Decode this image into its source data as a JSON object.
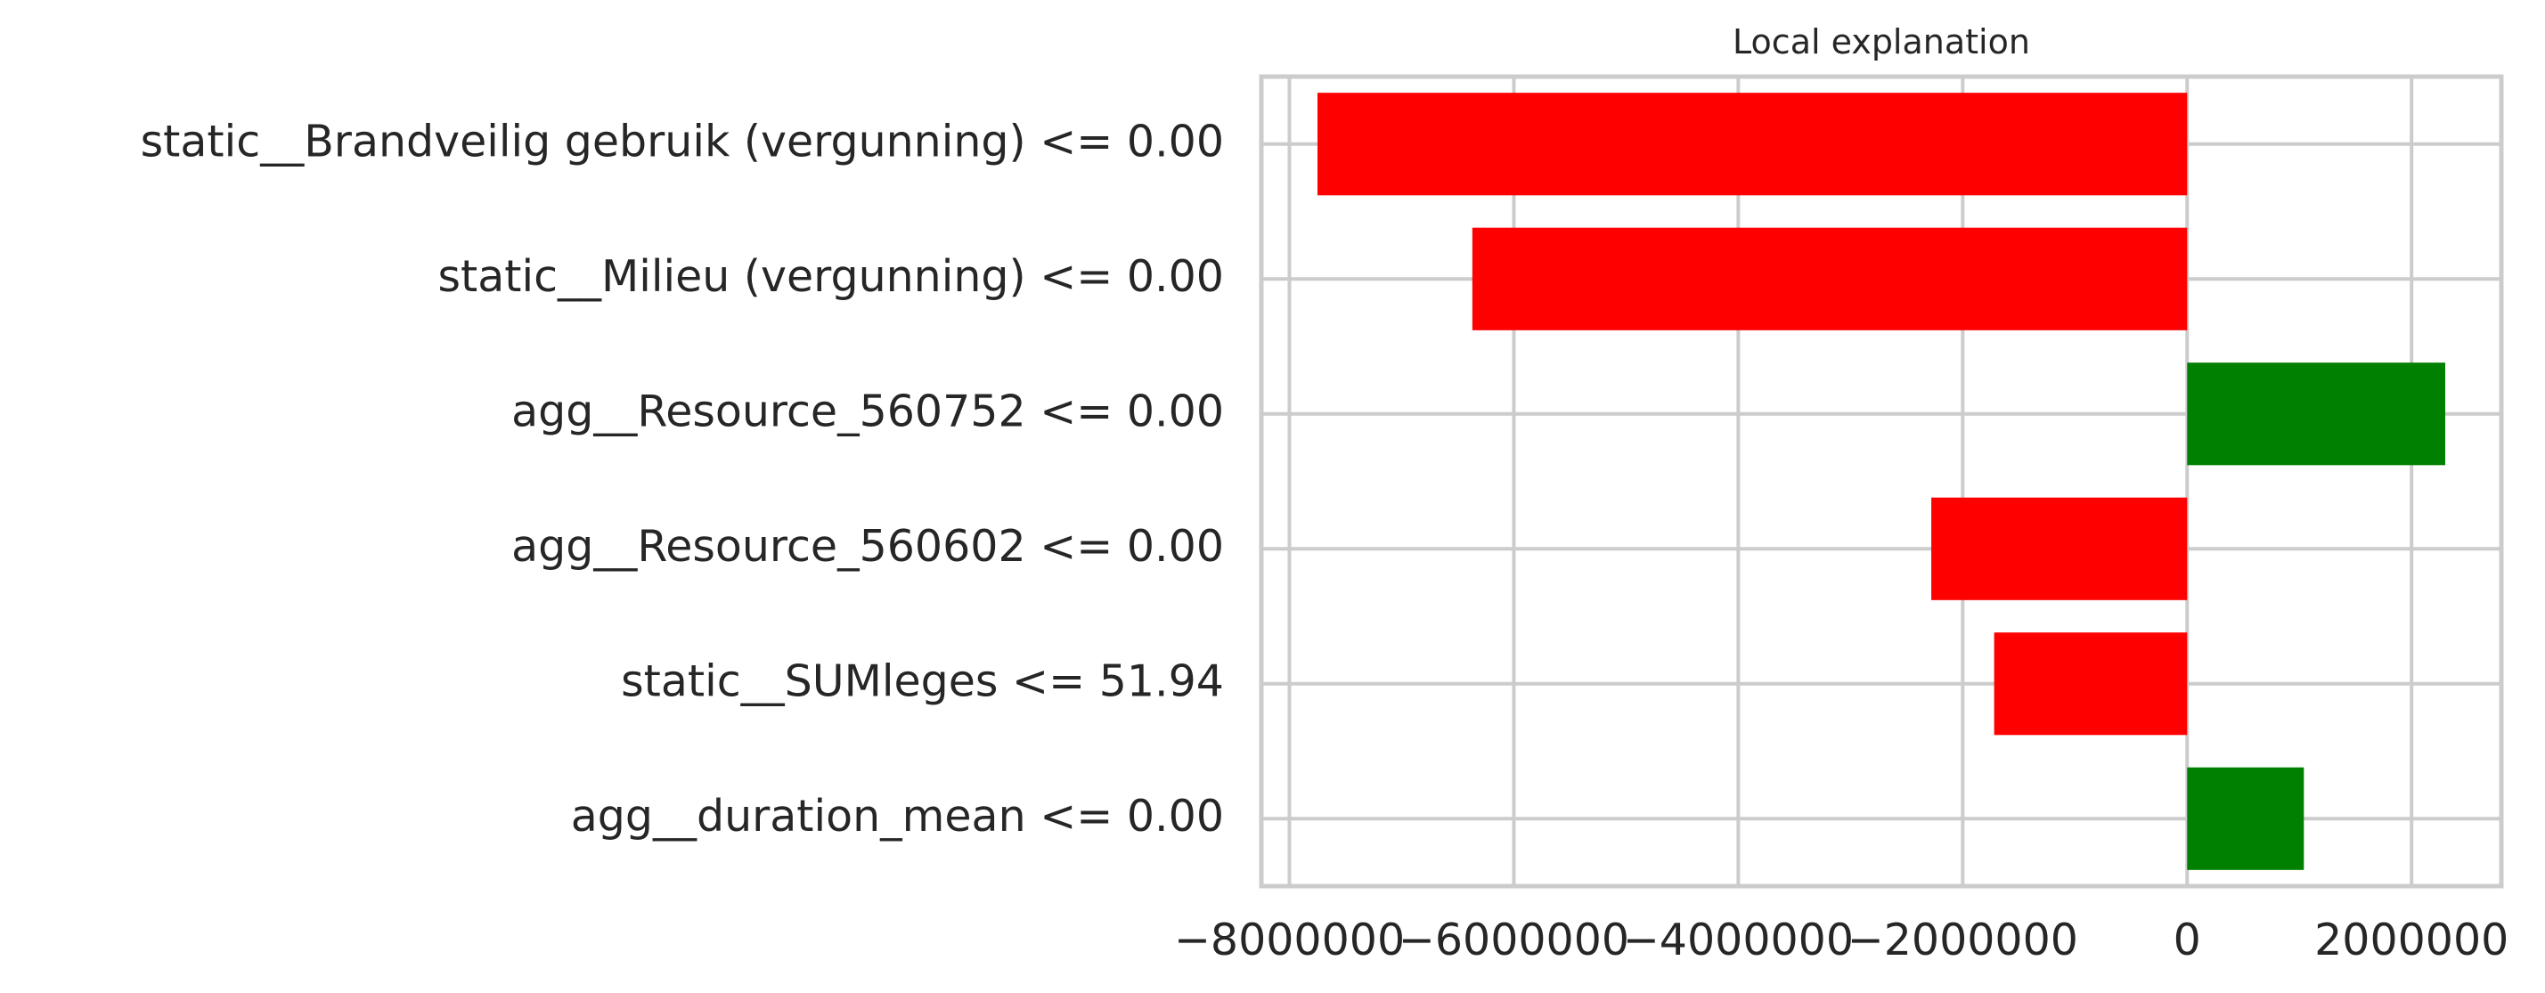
{
  "chart_data": {
    "type": "bar",
    "orientation": "horizontal",
    "title": "Local explanation",
    "categories": [
      "static__Brandveilig gebruik (vergunning) <= 0.00",
      "static__Milieu (vergunning) <= 0.00",
      "agg__Resource_560752 <= 0.00",
      "agg__Resource_560602 <= 0.00",
      "static__SUMleges <= 51.94",
      "agg__duration_mean <= 0.00"
    ],
    "values": [
      -7750000,
      -6370000,
      2300000,
      -2280000,
      -1720000,
      1040000
    ],
    "xlim": [
      -8250000,
      2800000
    ],
    "xticks": [
      -8000000,
      -6000000,
      -4000000,
      -2000000,
      0,
      2000000
    ],
    "xtick_labels": [
      "−8000000",
      "−6000000",
      "−4000000",
      "−2000000",
      "0",
      "2000000"
    ],
    "grid": true,
    "colors": {
      "positive": "#008000",
      "negative": "#ff0000",
      "grid": "#cccccc",
      "spine": "#cccccc",
      "text": "#262626"
    }
  }
}
